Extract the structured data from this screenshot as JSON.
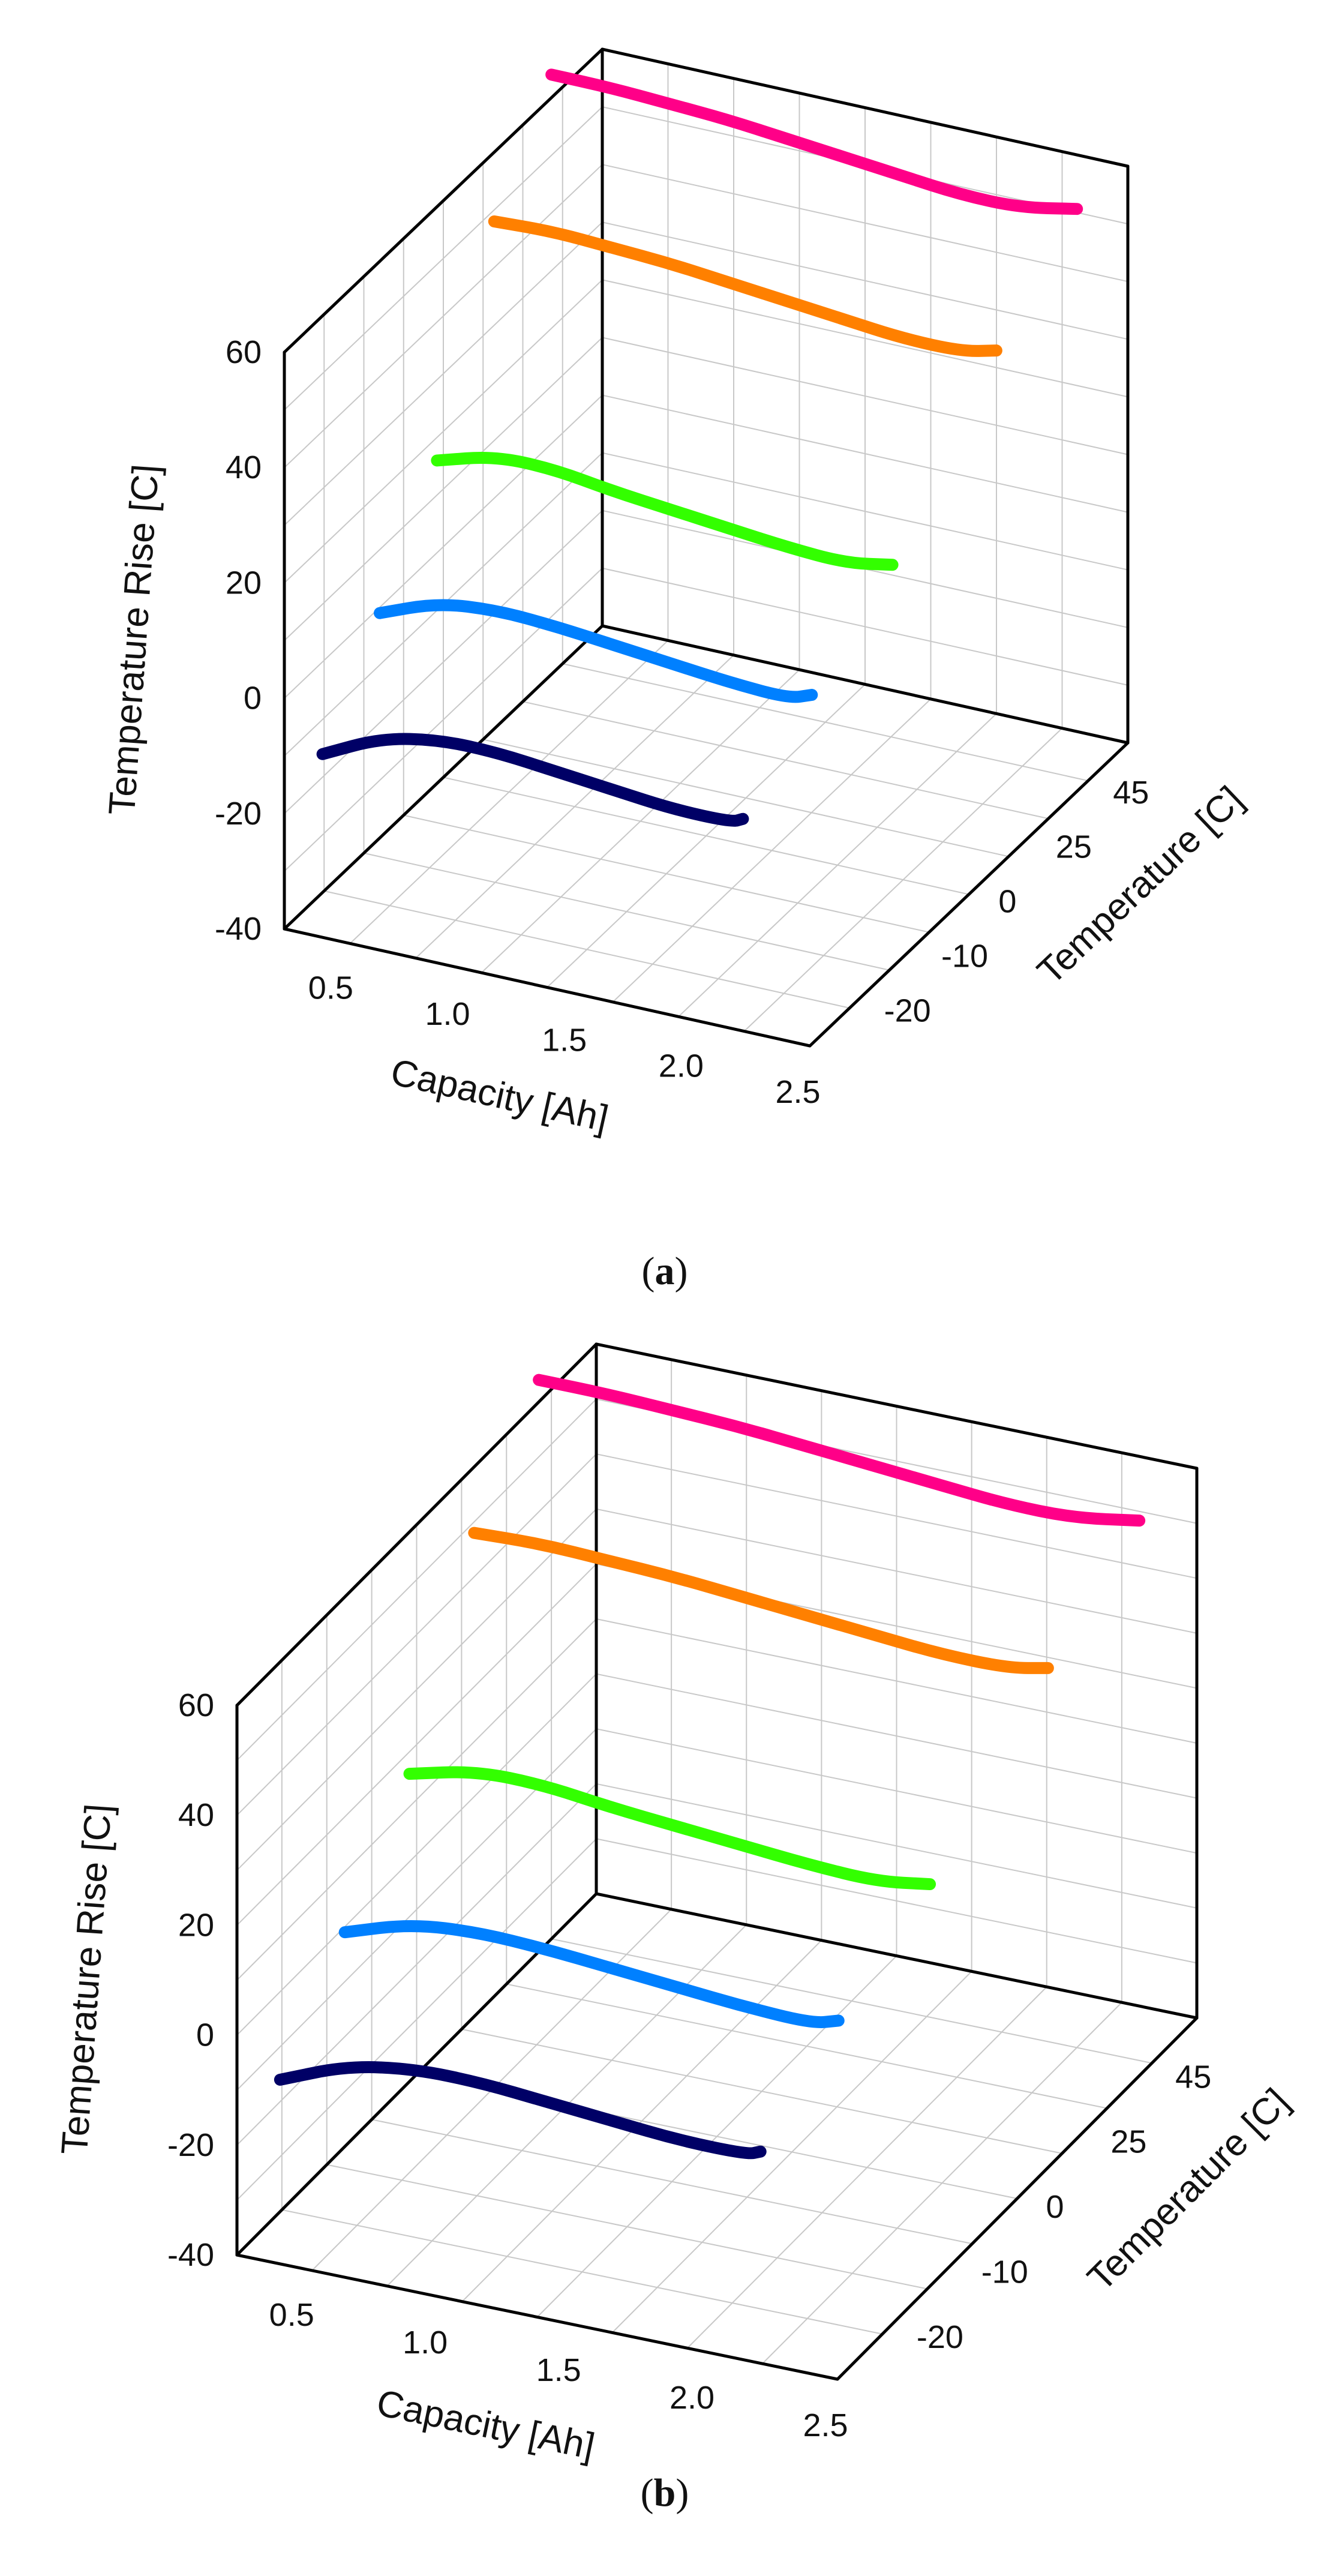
{
  "chart_data": [
    {
      "type": "line",
      "projection": "3d",
      "caption_prefix": "(",
      "caption_letter": "a",
      "caption_suffix": ")",
      "xlabel": "Capacity  [Ah]",
      "ylabel": "Temperature [C]",
      "zlabel": "Temperature Rise [C]",
      "xlim": [
        0.25,
        2.5
      ],
      "zlim": [
        -40,
        60
      ],
      "xticks": [
        "0.5",
        "1.0",
        "1.5",
        "2.0",
        "2.5"
      ],
      "yticks": [
        "-20",
        "-10",
        "0",
        "25",
        "45"
      ],
      "zticks": [
        "-40",
        "-20",
        "0",
        "20",
        "40",
        "60"
      ],
      "grid": true,
      "series": [
        {
          "color": "#000066",
          "y_index": 0,
          "x": [
            0.25,
            0.5,
            0.75,
            1.0,
            1.25,
            1.5,
            1.75,
            2.0,
            2.05
          ],
          "z": [
            -16,
            -11,
            -9,
            -9,
            -10,
            -11,
            -12,
            -12,
            -11
          ]
        },
        {
          "color": "#0080ff",
          "y_index": 1,
          "x": [
            0.25,
            0.5,
            0.75,
            1.0,
            1.25,
            1.5,
            1.75,
            2.0,
            2.1
          ],
          "z": [
            -1,
            3,
            4,
            3.5,
            2.5,
            1.5,
            0.5,
            0,
            1.5
          ]
        },
        {
          "color": "#33ff00",
          "y_index": 2,
          "x": [
            0.25,
            0.5,
            0.75,
            1.0,
            1.25,
            1.5,
            1.75,
            2.0,
            2.2
          ],
          "z": [
            16,
            19,
            19,
            17.5,
            16.5,
            15.5,
            14.5,
            14,
            15.5
          ]
        },
        {
          "color": "#ff8000",
          "y_index": 3,
          "x": [
            0.25,
            0.5,
            0.75,
            1.0,
            1.25,
            1.5,
            1.75,
            2.0,
            2.25,
            2.4
          ],
          "z": [
            48,
            48.5,
            48,
            47.5,
            46.5,
            45.5,
            44.5,
            43.5,
            43.5,
            45
          ]
        },
        {
          "color": "#ff0088",
          "y_index": 4,
          "x": [
            0.25,
            0.5,
            0.75,
            1.0,
            1.25,
            1.5,
            1.75,
            2.0,
            2.25,
            2.5
          ],
          "z": [
            64,
            64,
            63.5,
            63,
            62,
            61,
            60,
            59,
            59,
            61
          ]
        }
      ]
    },
    {
      "type": "line",
      "projection": "3d",
      "caption_prefix": "(",
      "caption_letter": "b",
      "caption_suffix": ")",
      "xlabel": "Capacity [Ah]",
      "ylabel": "Temperature [C]",
      "zlabel": "Temperature Rise [C]",
      "xlim": [
        0.25,
        2.5
      ],
      "zlim": [
        -40,
        60
      ],
      "xticks": [
        "0.5",
        "1.0",
        "1.5",
        "2.0",
        "2.5"
      ],
      "yticks": [
        "-20",
        "-10",
        "0",
        "25",
        "45"
      ],
      "zticks": [
        "-40",
        "-20",
        "0",
        "20",
        "40",
        "60"
      ],
      "grid": true,
      "series": [
        {
          "color": "#000066",
          "y_index": 0,
          "x": [
            0.25,
            0.5,
            0.75,
            1.0,
            1.25,
            1.5,
            1.75,
            2.0,
            2.05
          ],
          "z": [
            -16,
            -11,
            -9,
            -9,
            -10,
            -11,
            -12,
            -12,
            -11
          ]
        },
        {
          "color": "#0080ff",
          "y_index": 1,
          "x": [
            0.25,
            0.5,
            0.75,
            1.0,
            1.25,
            1.5,
            1.75,
            2.0,
            2.1
          ],
          "z": [
            -1,
            3,
            4,
            3.5,
            2.5,
            1.5,
            0.5,
            0,
            1.5
          ]
        },
        {
          "color": "#33ff00",
          "y_index": 2,
          "x": [
            0.25,
            0.5,
            0.75,
            1.0,
            1.25,
            1.5,
            1.75,
            2.0,
            2.2
          ],
          "z": [
            16,
            19,
            19,
            17.5,
            16.5,
            15.5,
            14.5,
            14,
            15.5
          ]
        },
        {
          "color": "#ff8000",
          "y_index": 3,
          "x": [
            0.25,
            0.5,
            0.75,
            1.0,
            1.25,
            1.5,
            1.75,
            2.0,
            2.25,
            2.4
          ],
          "z": [
            48,
            48.5,
            48,
            47.5,
            46.5,
            45.5,
            44.5,
            43.5,
            43.5,
            45
          ]
        },
        {
          "color": "#ff0088",
          "y_index": 4,
          "x": [
            0.25,
            0.5,
            0.75,
            1.0,
            1.25,
            1.5,
            1.75,
            2.0,
            2.25,
            2.5
          ],
          "z": [
            64,
            64,
            63.5,
            63,
            62,
            61,
            60,
            59,
            59,
            61
          ]
        }
      ]
    }
  ]
}
